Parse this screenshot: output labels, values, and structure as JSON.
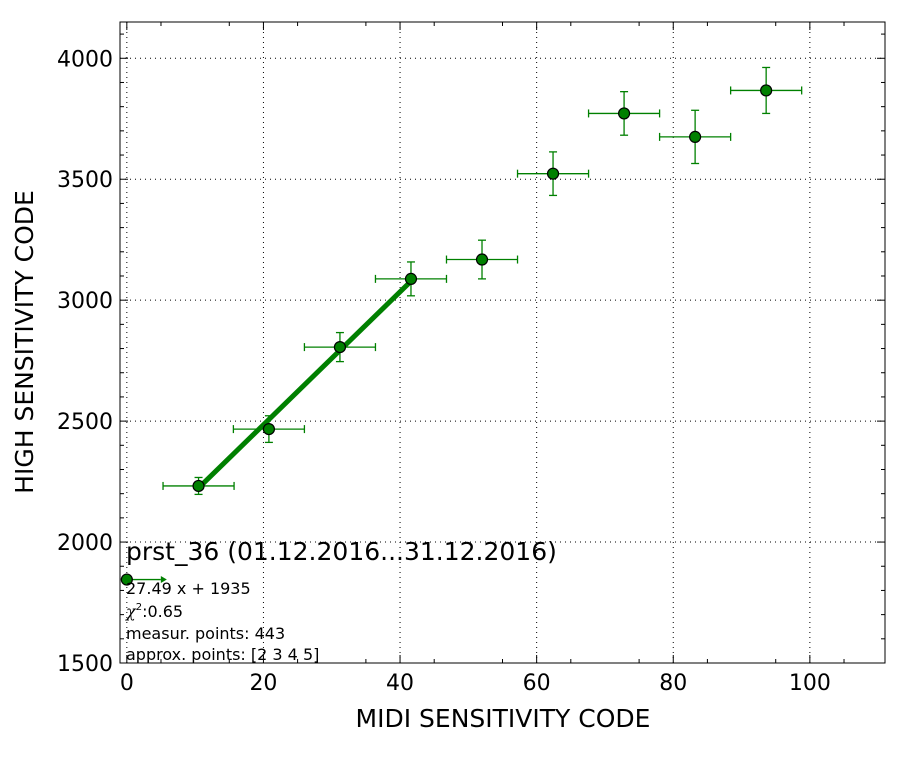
{
  "chart_data": {
    "type": "scatter",
    "xlabel": "MIDI SENSITIVITY CODE",
    "ylabel": "HIGH SENSITIVITY CODE",
    "xlim": [
      -1,
      111
    ],
    "ylim": [
      1500,
      4150
    ],
    "xticks": [
      0,
      20,
      40,
      60,
      80,
      100
    ],
    "yticks": [
      1500,
      2000,
      2500,
      3000,
      3500,
      4000
    ],
    "grid": true,
    "colors": {
      "marker": "#008000",
      "edge": "#000000",
      "fit": "#008000",
      "errorbar": "#008000"
    },
    "series": [
      {
        "points": [
          {
            "x": 10.5,
            "y": 2232,
            "xerr": 5.2,
            "yerr": 35
          },
          {
            "x": 20.8,
            "y": 2467,
            "xerr": 5.2,
            "yerr": 55
          },
          {
            "x": 31.2,
            "y": 2806,
            "xerr": 5.2,
            "yerr": 60
          },
          {
            "x": 41.6,
            "y": 3088,
            "xerr": 5.2,
            "yerr": 70
          },
          {
            "x": 52.0,
            "y": 3168,
            "xerr": 5.2,
            "yerr": 80
          },
          {
            "x": 62.4,
            "y": 3523,
            "xerr": 5.2,
            "yerr": 90
          },
          {
            "x": 72.8,
            "y": 3772,
            "xerr": 5.2,
            "yerr": 90
          },
          {
            "x": 83.2,
            "y": 3675,
            "xerr": 5.2,
            "yerr": 110
          },
          {
            "x": 93.6,
            "y": 3867,
            "xerr": 5.2,
            "yerr": 95
          }
        ]
      }
    ],
    "fit": {
      "x_range": [
        10.5,
        41.6
      ],
      "slope": 27.49,
      "intercept": 1935
    },
    "annotation": {
      "title": "prst_36 (01.12.2016...31.12.2016)",
      "lines": [
        "27.49 x + 1935",
        ":0.65",
        "measur. points: 443",
        "approx. points: [2 3 4 5]"
      ],
      "chi_symbol": "χ",
      "chi_sup": "2"
    },
    "legend_marker": {
      "x": 0,
      "y": 1845
    }
  }
}
